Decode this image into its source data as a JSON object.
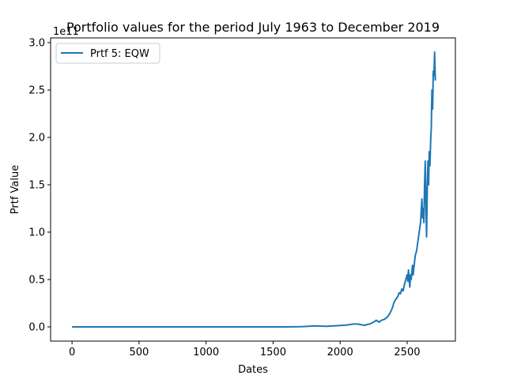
{
  "chart_data": {
    "type": "line",
    "title": "Portfolio values for the period July 1963 to December 2019",
    "xlabel": "Dates",
    "ylabel": "Prtf Value",
    "y_offset_label": "1e11",
    "xlim": [
      -160,
      2860
    ],
    "ylim": [
      -0.15,
      3.05
    ],
    "x_ticks": [
      0,
      500,
      1000,
      1500,
      2000,
      2500
    ],
    "x_tick_labels": [
      "0",
      "500",
      "1000",
      "1500",
      "2000",
      "2500"
    ],
    "y_ticks": [
      0.0,
      0.5,
      1.0,
      1.5,
      2.0,
      2.5,
      3.0
    ],
    "y_tick_labels": [
      "0.0",
      "0.5",
      "1.0",
      "1.5",
      "2.0",
      "2.5",
      "3.0"
    ],
    "grid": false,
    "legend_position": "top-left",
    "series": [
      {
        "name": "Prtf 5: EQW",
        "color": "#1f77b4",
        "x": [
          0,
          200,
          400,
          600,
          800,
          1000,
          1200,
          1400,
          1600,
          1700,
          1750,
          1800,
          1850,
          1900,
          1950,
          2000,
          2050,
          2100,
          2130,
          2150,
          2170,
          2180,
          2200,
          2220,
          2250,
          2270,
          2290,
          2300,
          2310,
          2330,
          2350,
          2370,
          2390,
          2400,
          2410,
          2420,
          2430,
          2440,
          2450,
          2460,
          2470,
          2480,
          2490,
          2500,
          2505,
          2510,
          2515,
          2520,
          2525,
          2530,
          2540,
          2545,
          2550,
          2560,
          2570,
          2580,
          2590,
          2600,
          2610,
          2615,
          2620,
          2625,
          2630,
          2635,
          2640,
          2645,
          2650,
          2655,
          2660,
          2665,
          2670,
          2675,
          2680,
          2685,
          2690,
          2695,
          2700,
          2705,
          2710
        ],
        "values": [
          0.0,
          0.0,
          0.0,
          0.0,
          0.0,
          0.0,
          0.0,
          0.0,
          0.0,
          0.002,
          0.005,
          0.01,
          0.008,
          0.006,
          0.01,
          0.015,
          0.02,
          0.03,
          0.03,
          0.025,
          0.02,
          0.015,
          0.025,
          0.03,
          0.05,
          0.07,
          0.05,
          0.06,
          0.07,
          0.08,
          0.1,
          0.14,
          0.2,
          0.25,
          0.28,
          0.3,
          0.32,
          0.36,
          0.35,
          0.4,
          0.38,
          0.45,
          0.5,
          0.55,
          0.48,
          0.6,
          0.5,
          0.42,
          0.55,
          0.5,
          0.65,
          0.55,
          0.62,
          0.75,
          0.8,
          0.9,
          1.0,
          1.1,
          1.35,
          1.15,
          1.25,
          1.1,
          1.5,
          1.75,
          1.3,
          0.95,
          1.45,
          1.75,
          1.5,
          1.85,
          1.7,
          1.95,
          2.1,
          2.5,
          2.3,
          2.7,
          2.65,
          2.9,
          2.6
        ]
      }
    ]
  }
}
